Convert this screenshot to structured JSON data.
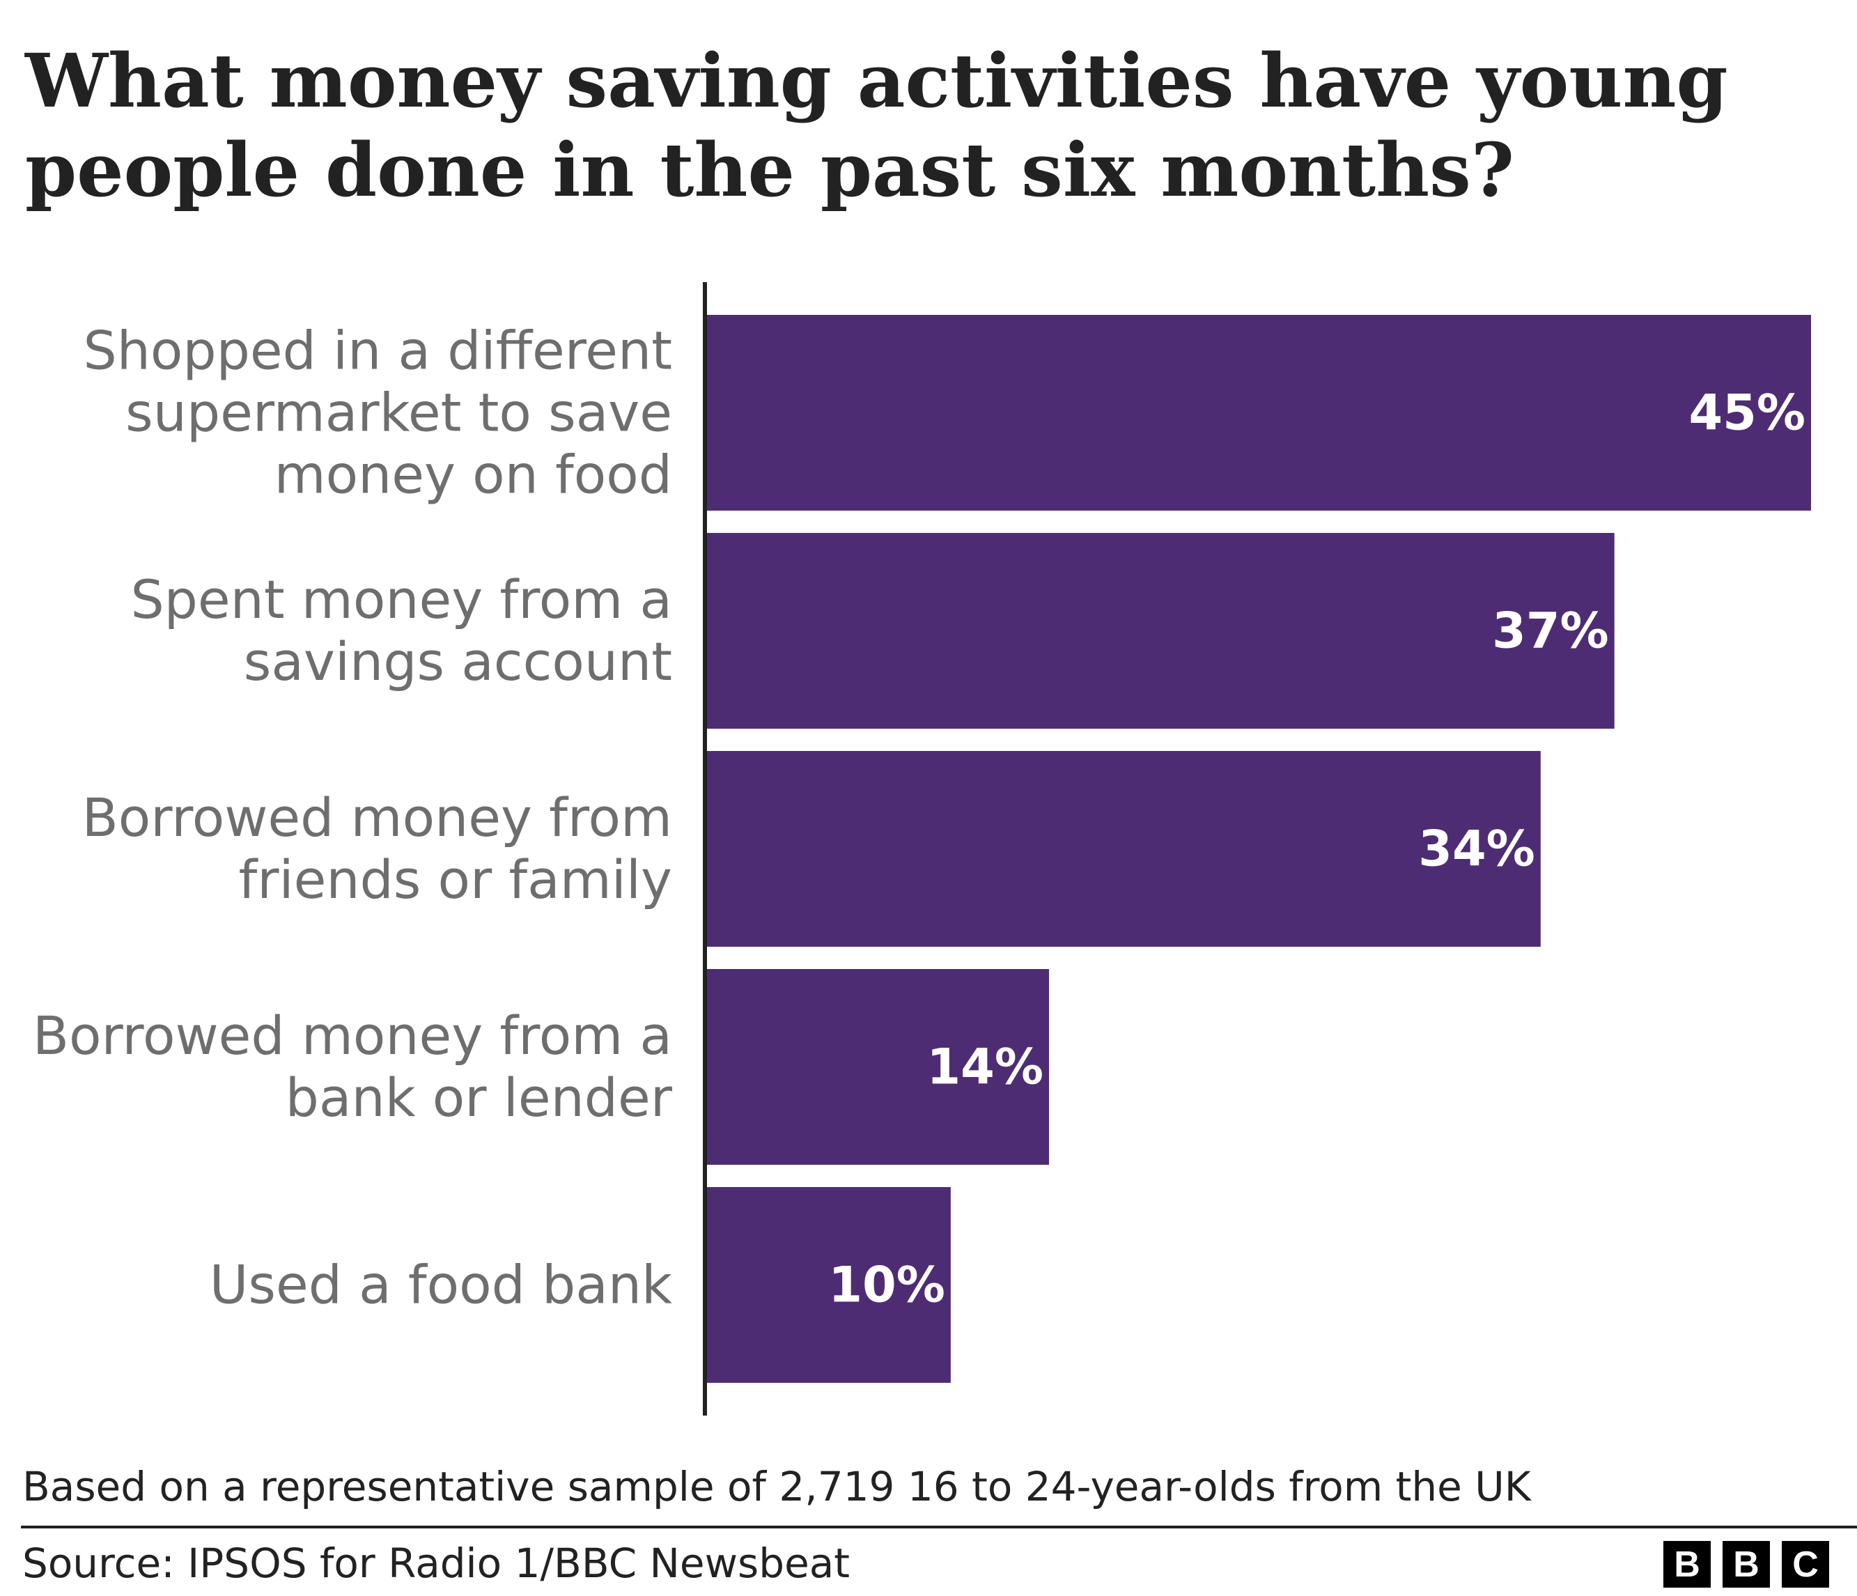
{
  "chart_data": {
    "type": "bar",
    "orientation": "horizontal",
    "title": "What money saving activities have young people done in the past six months?",
    "categories": [
      "Shopped in a different supermarket to save money on food",
      "Spent money from a savings account",
      "Borrowed money from friends or family",
      "Borrowed money from a bank or lender",
      "Used a food bank"
    ],
    "category_lines": [
      [
        "Shopped in a different",
        "supermarket to save",
        "money on food"
      ],
      [
        "Spent money from a",
        "savings account"
      ],
      [
        "Borrowed money from",
        "friends or family"
      ],
      [
        "Borrowed money from a",
        "bank or lender"
      ],
      [
        "Used a food bank"
      ]
    ],
    "values": [
      45,
      37,
      34,
      14,
      10
    ],
    "data_labels": [
      "45%",
      "37%",
      "34%",
      "14%",
      "10%"
    ],
    "unit": "%",
    "xlim": [
      0,
      45
    ],
    "grid": false,
    "bar_color": "#4e2c74"
  },
  "footnote": "Based on a representative sample of 2,719 16 to 24-year-olds from the UK",
  "source": "Source: IPSOS for Radio 1/BBC Newsbeat",
  "logo": [
    "B",
    "B",
    "C"
  ]
}
